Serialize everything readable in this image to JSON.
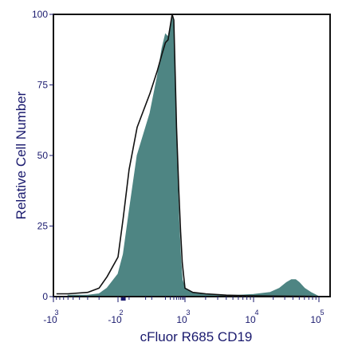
{
  "chart_data": {
    "type": "area",
    "title": "",
    "xlabel": "cFluor R685 CD19",
    "ylabel": "Relative Cell Number",
    "x_scale": "biexponential",
    "ylim": [
      0,
      100
    ],
    "y_ticks": [
      "0",
      "25",
      "50",
      "75",
      "100"
    ],
    "x_ticks": [
      {
        "base": "-10",
        "exp": "3",
        "value": -1000
      },
      {
        "base": "-10",
        "exp": "2",
        "value": -100
      },
      {
        "base": "10",
        "exp": "3",
        "value": 1000
      },
      {
        "base": "10",
        "exp": "4",
        "value": 10000
      },
      {
        "base": "10",
        "exp": "5",
        "value": 100000
      }
    ],
    "grid": false,
    "colors": {
      "filled": "#4e8583",
      "line": "#111111",
      "axis": "#1a1a6e",
      "frame": "#111111"
    },
    "series": [
      {
        "style": "filled",
        "x": [
          -600,
          -300,
          -200,
          -150,
          -100,
          -60,
          -30,
          0,
          50,
          100,
          150,
          200,
          250,
          300,
          350,
          400,
          450,
          500,
          600,
          700,
          800,
          1000,
          1300,
          2000,
          3500,
          6000,
          10000,
          18000,
          25000,
          32000,
          38000,
          44000,
          50000,
          60000,
          75000,
          100000
        ],
        "y": [
          0.5,
          0.5,
          1,
          3,
          8,
          15,
          30,
          50,
          65,
          78,
          88,
          93,
          92,
          96,
          100,
          95,
          75,
          52,
          28,
          14,
          6,
          3,
          1.5,
          1,
          0.5,
          0.5,
          0.8,
          1.5,
          3,
          5,
          6,
          6,
          5,
          3,
          1.5,
          0
        ]
      },
      {
        "style": "line",
        "x": [
          -900,
          -600,
          -300,
          -200,
          -150,
          -100,
          -60,
          -30,
          0,
          50,
          100,
          150,
          200,
          250,
          300,
          350,
          400,
          450,
          500,
          600,
          700,
          800,
          1000,
          1300,
          2000,
          4000,
          8000,
          20000,
          60000,
          140000
        ],
        "y": [
          1,
          1,
          1.5,
          3,
          7,
          14,
          28,
          45,
          60,
          72,
          80,
          86,
          90,
          91,
          96,
          100,
          98,
          78,
          60,
          38,
          23,
          12,
          3,
          1.5,
          1,
          0.5,
          0.3,
          0.2,
          0.1,
          0
        ]
      }
    ]
  }
}
